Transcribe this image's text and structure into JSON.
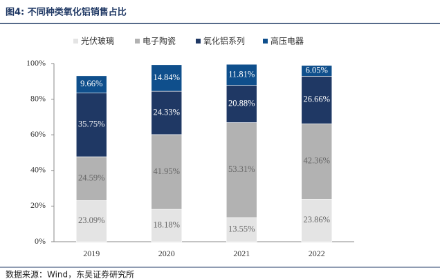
{
  "chart_data": {
    "type": "stacked_bar",
    "title": "图4: 不同种类氧化铝销售占比",
    "categories": [
      "2019",
      "2020",
      "2021",
      "2022"
    ],
    "series": [
      {
        "name": "光伏玻璃",
        "color": "#e4e4e4",
        "values": [
          23.09,
          18.18,
          13.55,
          23.86
        ],
        "value_labels": [
          "23.09%",
          "18.18%",
          "13.55%",
          "23.86%"
        ]
      },
      {
        "name": "电子陶瓷",
        "color": "#b2b2b2",
        "values": [
          24.59,
          41.95,
          53.31,
          42.36
        ],
        "value_labels": [
          "24.59%",
          "41.95%",
          "53.31%",
          "42.36%"
        ]
      },
      {
        "name": "氧化铝系列",
        "color": "#1f3864",
        "values": [
          35.75,
          24.33,
          20.88,
          26.66
        ],
        "value_labels": [
          "35.75%",
          "24.33%",
          "20.88%",
          "26.66%"
        ]
      },
      {
        "name": "高压电器",
        "color": "#0f4f8c",
        "values": [
          9.66,
          14.84,
          11.81,
          6.05
        ],
        "value_labels": [
          "9.66%",
          "14.84%",
          "11.81%",
          "6.05%"
        ]
      }
    ],
    "ylim": [
      0,
      100
    ],
    "yticks": [
      {
        "value": 0,
        "label": "0%"
      },
      {
        "value": 20,
        "label": "20%"
      },
      {
        "value": 40,
        "label": "40%"
      },
      {
        "value": 60,
        "label": "60%"
      },
      {
        "value": 80,
        "label": "80%"
      },
      {
        "value": 100,
        "label": "100%"
      }
    ],
    "grid": false,
    "source": "数据来源：Wind，东吴证券研究所"
  }
}
